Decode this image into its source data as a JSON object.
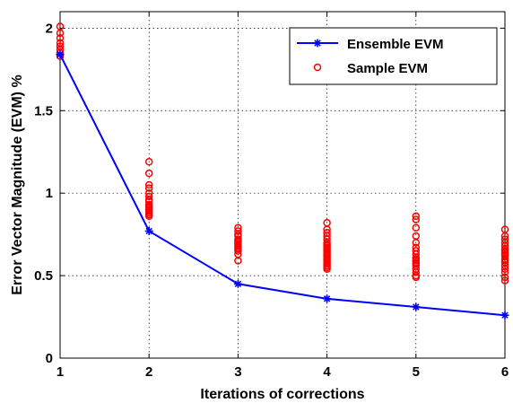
{
  "chart_data": {
    "type": "line",
    "xlabel": "Iterations of corrections",
    "ylabel": "Error Vector Magnitude (EVM) %",
    "xlim": [
      1,
      6
    ],
    "ylim": [
      0,
      2.1
    ],
    "x_ticks": [
      "1",
      "2",
      "3",
      "4",
      "5",
      "6"
    ],
    "y_ticks": [
      "0",
      "0.5",
      "1",
      "1.5",
      "2"
    ],
    "grid": true,
    "legend_position": "top-right",
    "series": [
      {
        "name": "Ensemble EVM",
        "kind": "line",
        "marker": "star",
        "color": "#0000ff",
        "x": [
          1,
          2,
          3,
          4,
          5,
          6
        ],
        "y": [
          1.84,
          0.77,
          0.45,
          0.36,
          0.31,
          0.26
        ]
      },
      {
        "name": "Sample EVM",
        "kind": "scatter",
        "marker": "circle",
        "color": "#ff0000",
        "x": [
          1,
          1,
          1,
          1,
          1,
          1,
          1,
          1,
          2,
          2,
          2,
          2,
          2,
          2,
          2,
          2,
          2,
          2,
          2,
          2,
          2,
          2,
          2,
          2,
          3,
          3,
          3,
          3,
          3,
          3,
          3,
          3,
          3,
          3,
          3,
          3,
          3,
          3,
          4,
          4,
          4,
          4,
          4,
          4,
          4,
          4,
          4,
          4,
          4,
          4,
          4,
          4,
          4,
          4,
          4,
          4,
          4,
          4,
          4,
          4,
          5,
          5,
          5,
          5,
          5,
          5,
          5,
          5,
          5,
          5,
          5,
          5,
          5,
          5,
          5,
          5,
          5,
          5,
          6,
          6,
          6,
          6,
          6,
          6,
          6,
          6,
          6,
          6,
          6,
          6,
          6,
          6,
          6,
          6,
          6,
          6
        ],
        "y": [
          2.01,
          1.97,
          1.94,
          1.91,
          1.89,
          1.87,
          1.85,
          1.83,
          1.19,
          1.12,
          1.05,
          1.03,
          1.0,
          0.98,
          0.96,
          0.95,
          0.93,
          0.92,
          0.91,
          0.9,
          0.89,
          0.88,
          0.87,
          0.86,
          0.79,
          0.77,
          0.75,
          0.74,
          0.72,
          0.71,
          0.7,
          0.69,
          0.68,
          0.67,
          0.66,
          0.65,
          0.63,
          0.59,
          0.82,
          0.78,
          0.76,
          0.74,
          0.72,
          0.7,
          0.69,
          0.68,
          0.67,
          0.66,
          0.65,
          0.64,
          0.63,
          0.62,
          0.61,
          0.6,
          0.59,
          0.58,
          0.57,
          0.56,
          0.55,
          0.54,
          0.86,
          0.84,
          0.79,
          0.74,
          0.7,
          0.67,
          0.65,
          0.63,
          0.61,
          0.6,
          0.59,
          0.58,
          0.57,
          0.56,
          0.54,
          0.52,
          0.5,
          0.49,
          0.78,
          0.74,
          0.72,
          0.7,
          0.68,
          0.66,
          0.65,
          0.64,
          0.63,
          0.62,
          0.6,
          0.59,
          0.58,
          0.56,
          0.54,
          0.52,
          0.49,
          0.47
        ]
      }
    ]
  }
}
